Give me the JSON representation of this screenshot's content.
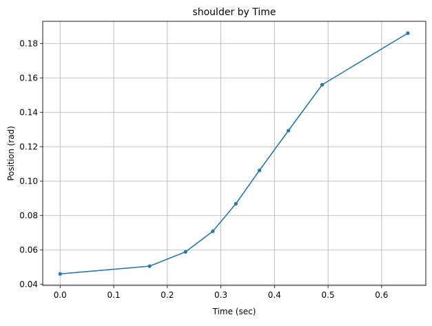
{
  "chart_data": {
    "type": "line",
    "title": "shoulder by Time",
    "xlabel": "Time (sec)",
    "ylabel": "Position (rad)",
    "xlim": [
      -0.0325,
      0.6825
    ],
    "ylim": [
      0.0393,
      0.1929
    ],
    "x_ticks": [
      0.0,
      0.1,
      0.2,
      0.3,
      0.4,
      0.5,
      0.6
    ],
    "x_tick_labels": [
      "0.0",
      "0.1",
      "0.2",
      "0.3",
      "0.4",
      "0.5",
      "0.6"
    ],
    "y_ticks": [
      0.04,
      0.06,
      0.08,
      0.1,
      0.12,
      0.14,
      0.16,
      0.18
    ],
    "y_tick_labels": [
      "0.04",
      "0.06",
      "0.08",
      "0.10",
      "0.12",
      "0.14",
      "0.16",
      "0.18"
    ],
    "grid": true,
    "legend": false,
    "series": [
      {
        "color": "#1f77b4",
        "marker": "circle",
        "x": [
          0.0,
          0.167,
          0.234,
          0.285,
          0.328,
          0.372,
          0.426,
          0.489,
          0.649
        ],
        "y": [
          0.046,
          0.0505,
          0.0588,
          0.0708,
          0.0868,
          0.1062,
          0.1293,
          0.156,
          0.186
        ]
      }
    ]
  }
}
